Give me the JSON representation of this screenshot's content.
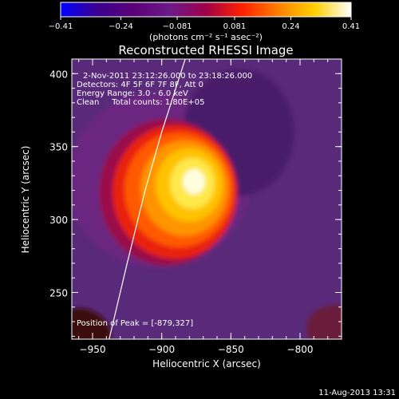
{
  "chart_data": {
    "type": "heatmap",
    "title": "Reconstructed RHESSI Image",
    "xlabel": "Heliocentric X (arcsec)",
    "ylabel": "Heliocentric Y (arcsec)",
    "xlim": [
      -965,
      -770
    ],
    "ylim": [
      218,
      410
    ],
    "xticks": [
      -950,
      -900,
      -850,
      -800
    ],
    "yticks": [
      250,
      300,
      350,
      400
    ],
    "x_ticklabels": [
      "−950",
      "−900",
      "−850",
      "−800"
    ],
    "y_ticklabels": [
      "250",
      "300",
      "350",
      "400"
    ],
    "colorbar": {
      "min": -0.41,
      "max": 0.41,
      "ticks": [
        -0.41,
        -0.24,
        -0.081,
        0.081,
        0.24,
        0.41
      ],
      "ticklabels": [
        "−0.41",
        "−0.24",
        "−0.081",
        "0.081",
        "0.24",
        "0.41"
      ],
      "units_label": "(photons cm⁻² s⁻¹ asec⁻²)",
      "colors": [
        "#0000ff",
        "#3a0090",
        "#5a0078",
        "#6b1a8a",
        "#a0004a",
        "#ff2000",
        "#ff8000",
        "#ffd000",
        "#ffffff"
      ]
    },
    "annotations": [
      "2-Nov-2011 23:12:26.000 to 23:18:26.000",
      "Detectors: 4F 5F 6F 7F 8F, Att 0",
      "Energy Range: 3.0 - 6.0 keV",
      "Clean     Total counts: 1.80E+05"
    ],
    "peak_label": "Position of Peak = [-879,327]",
    "peak": [
      -879,
      327
    ],
    "source_peak_value": 0.41,
    "limb_points": [
      [
        -938,
        218
      ],
      [
        -925,
        270
      ],
      [
        -912,
        320
      ],
      [
        -900,
        360
      ],
      [
        -883,
        410
      ]
    ],
    "background_color": "#5a2a7a",
    "grid": false
  },
  "footer_timestamp": "11-Aug-2013 13:31"
}
